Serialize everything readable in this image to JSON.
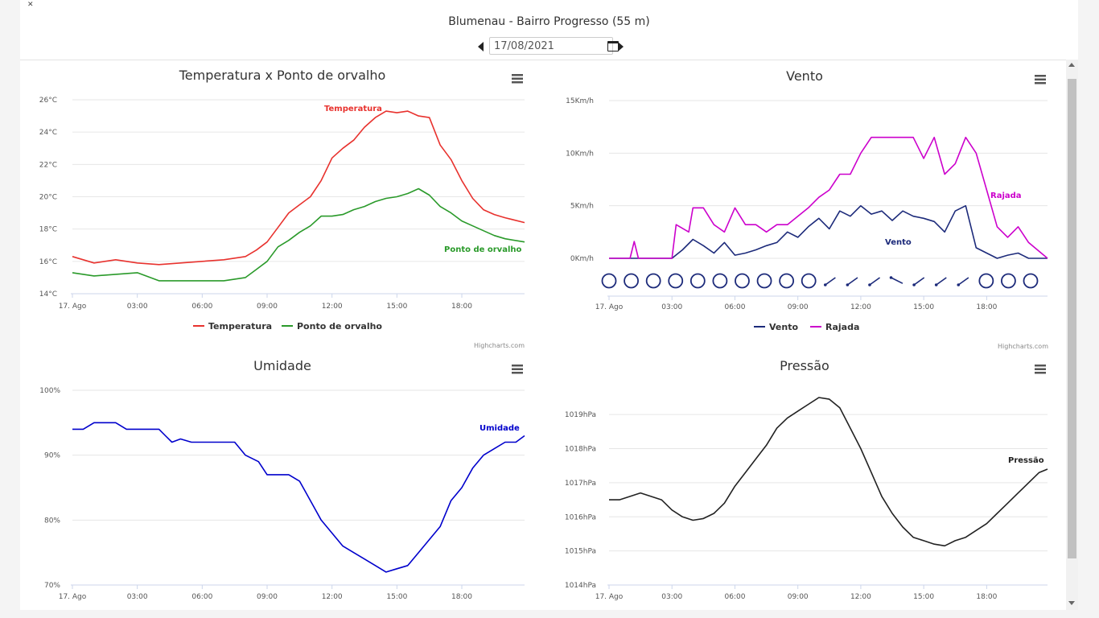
{
  "page": {
    "title": "Blumenau - Bairro Progresso (55 m)",
    "date_value": "17/08/2021",
    "credit": "Highcharts.com"
  },
  "icons": {
    "prev": "caret-left-icon",
    "next": "caret-right-icon",
    "calendar": "calendar-icon",
    "menu": "hamburger-menu-icon"
  },
  "colors": {
    "temperatura": "#e8322e",
    "orvalho": "#2a9a2a",
    "vento": "#1c2a7a",
    "rajada": "#cc00cc",
    "umidade": "#0000cc",
    "pressao": "#222222"
  },
  "chart_data": [
    {
      "type": "line",
      "title": "Temperatura x Ponto de orvalho",
      "x_ticks": [
        "17. Ago",
        "03:00",
        "06:00",
        "09:00",
        "12:00",
        "15:00",
        "18:00"
      ],
      "y_ticks": [
        "14°C",
        "16°C",
        "18°C",
        "20°C",
        "22°C",
        "24°C",
        "26°C"
      ],
      "ylim": [
        14,
        26
      ],
      "xlim": [
        0,
        20.9
      ],
      "series": [
        {
          "name": "Temperatura",
          "x": [
            0,
            1,
            2,
            3,
            4,
            5,
            6,
            7,
            7.5,
            8,
            8.5,
            9,
            9.5,
            10,
            10.5,
            11,
            11.5,
            12,
            12.5,
            13,
            13.5,
            14,
            14.5,
            15,
            15.5,
            16,
            16.5,
            17,
            17.5,
            18,
            18.5,
            19,
            19.5,
            20,
            20.9
          ],
          "y": [
            16.3,
            15.9,
            16.1,
            15.9,
            15.8,
            15.9,
            16.0,
            16.1,
            16.2,
            16.3,
            16.7,
            17.2,
            18.1,
            19.0,
            19.5,
            20.0,
            21.0,
            22.4,
            23.0,
            23.5,
            24.3,
            24.9,
            25.3,
            25.2,
            25.3,
            25.0,
            24.9,
            23.2,
            22.3,
            21.0,
            19.9,
            19.2,
            18.9,
            18.7,
            18.4
          ]
        },
        {
          "name": "Ponto de orvalho",
          "x": [
            0,
            1,
            2,
            3,
            4,
            5,
            6,
            7,
            7.5,
            8,
            8.5,
            9,
            9.5,
            10,
            10.5,
            11,
            11.5,
            12,
            12.5,
            13,
            13.5,
            14,
            14.5,
            15,
            15.5,
            16,
            16.5,
            17,
            17.5,
            18,
            18.5,
            19,
            19.5,
            20,
            20.9
          ],
          "y": [
            15.3,
            15.1,
            15.2,
            15.3,
            14.8,
            14.8,
            14.8,
            14.8,
            14.9,
            15.0,
            15.5,
            16.0,
            16.9,
            17.3,
            17.8,
            18.2,
            18.8,
            18.8,
            18.9,
            19.2,
            19.4,
            19.7,
            19.9,
            20.0,
            20.2,
            20.5,
            20.1,
            19.4,
            19.0,
            18.5,
            18.2,
            17.9,
            17.6,
            17.4,
            17.2
          ]
        }
      ],
      "labels": [
        "Temperatura",
        "Ponto de orvalho"
      ]
    },
    {
      "type": "line",
      "title": "Vento",
      "x_ticks": [
        "17. Ago",
        "03:00",
        "06:00",
        "09:00",
        "12:00",
        "15:00",
        "18:00"
      ],
      "y_ticks": [
        "0Km/h",
        "5Km/h",
        "10Km/h",
        "15Km/h"
      ],
      "ylim": [
        0,
        15
      ],
      "xlim": [
        0,
        20.9
      ],
      "series": [
        {
          "name": "Vento",
          "x": [
            0,
            1,
            2,
            3,
            3.5,
            4,
            4.5,
            5,
            5.5,
            6,
            6.5,
            7,
            7.5,
            8,
            8.5,
            9,
            9.5,
            10,
            10.5,
            11,
            11.5,
            12,
            12.5,
            13,
            13.5,
            14,
            14.5,
            15,
            15.5,
            16,
            16.5,
            17,
            17.5,
            18,
            18.5,
            19,
            19.5,
            20,
            20.9
          ],
          "y": [
            0,
            0,
            0,
            0,
            0.8,
            1.8,
            1.2,
            0.5,
            1.5,
            0.3,
            0.5,
            0.8,
            1.2,
            1.5,
            2.5,
            2.0,
            3.0,
            3.8,
            2.8,
            4.5,
            4.0,
            5.0,
            4.2,
            4.5,
            3.6,
            4.5,
            4.0,
            3.8,
            3.5,
            2.5,
            4.5,
            5.0,
            1.0,
            0.5,
            0,
            0.3,
            0.5,
            0,
            0
          ]
        },
        {
          "name": "Rajada",
          "x": [
            0,
            1,
            1.2,
            1.4,
            2,
            3,
            3.2,
            3.8,
            4,
            4.5,
            5,
            5.5,
            6,
            6.5,
            7,
            7.5,
            8,
            8.5,
            9,
            9.5,
            10,
            10.5,
            11,
            11.5,
            12,
            12.5,
            13,
            13.5,
            14,
            14.5,
            15,
            15.5,
            16,
            16.5,
            17,
            17.5,
            18,
            18.5,
            19,
            19.5,
            20,
            20.9
          ],
          "y": [
            0,
            0,
            1.6,
            0,
            0,
            0,
            3.2,
            2.5,
            4.8,
            4.8,
            3.2,
            2.5,
            4.8,
            3.2,
            3.2,
            2.5,
            3.2,
            3.2,
            4.0,
            4.8,
            5.8,
            6.5,
            8.0,
            8.0,
            10.0,
            11.5,
            11.5,
            11.5,
            11.5,
            11.5,
            9.5,
            11.5,
            8.0,
            9.0,
            11.5,
            10.0,
            6.5,
            3.0,
            2.0,
            3.0,
            1.5,
            0
          ]
        }
      ],
      "direction_markers": [
        "calm",
        "calm",
        "calm",
        "calm",
        "calm",
        "calm",
        "calm",
        "calm",
        "calm",
        "calm",
        "SW",
        "SW",
        "SW",
        "NW",
        "SW",
        "SW",
        "SW",
        "calm",
        "calm",
        "calm"
      ],
      "labels": [
        "Vento",
        "Rajada"
      ]
    },
    {
      "type": "line",
      "title": "Umidade",
      "x_ticks": [
        "17. Ago",
        "03:00",
        "06:00",
        "09:00",
        "12:00",
        "15:00",
        "18:00"
      ],
      "y_ticks": [
        "70%",
        "80%",
        "90%",
        "100%"
      ],
      "ylim": [
        70,
        100
      ],
      "xlim": [
        0,
        20.9
      ],
      "series": [
        {
          "name": "Umidade",
          "x": [
            0,
            0.5,
            1,
            1.5,
            2,
            2.5,
            3,
            4,
            4.3,
            4.6,
            5,
            5.5,
            6,
            6.5,
            7,
            7.5,
            8,
            8.3,
            8.6,
            9,
            9.5,
            10,
            10.5,
            11,
            11.5,
            12,
            12.5,
            13,
            13.5,
            14,
            14.5,
            15,
            15.5,
            16,
            16.5,
            17,
            17.5,
            18,
            18.5,
            19,
            19.5,
            20,
            20.5,
            20.9
          ],
          "y": [
            94,
            94,
            95,
            95,
            95,
            94,
            94,
            94,
            93,
            92,
            92.5,
            92,
            92,
            92,
            92,
            92,
            90,
            89.5,
            89,
            87,
            87,
            87,
            86,
            83,
            80,
            78,
            76,
            75,
            74,
            73,
            72,
            72.5,
            73,
            75,
            77,
            79,
            83,
            85,
            88,
            90,
            91,
            92,
            92,
            93
          ]
        }
      ],
      "labels": [
        "Umidade"
      ]
    },
    {
      "type": "line",
      "title": "Pressão",
      "x_ticks": [
        "17. Ago",
        "03:00",
        "06:00",
        "09:00",
        "12:00",
        "15:00",
        "18:00"
      ],
      "y_ticks": [
        "1014hPa",
        "1015hPa",
        "1016hPa",
        "1017hPa",
        "1018hPa",
        "1019hPa"
      ],
      "ylim": [
        1014,
        1019.5
      ],
      "xlim": [
        0,
        20.9
      ],
      "series": [
        {
          "name": "Pressão",
          "x": [
            0,
            0.5,
            1,
            1.5,
            2,
            2.5,
            3,
            3.5,
            4,
            4.5,
            5,
            5.5,
            6,
            6.5,
            7,
            7.5,
            8,
            8.5,
            9,
            9.5,
            10,
            10.5,
            11,
            11.5,
            12,
            12.5,
            13,
            13.5,
            14,
            14.5,
            15,
            15.5,
            16,
            16.5,
            17,
            17.5,
            18,
            18.5,
            19,
            19.5,
            20,
            20.5,
            20.9
          ],
          "y": [
            1016.5,
            1016.5,
            1016.6,
            1016.7,
            1016.6,
            1016.5,
            1016.2,
            1016.0,
            1015.9,
            1015.95,
            1016.1,
            1016.4,
            1016.9,
            1017.3,
            1017.7,
            1018.1,
            1018.6,
            1018.9,
            1019.1,
            1019.3,
            1019.5,
            1019.45,
            1019.2,
            1018.6,
            1018.0,
            1017.3,
            1016.6,
            1016.1,
            1015.7,
            1015.4,
            1015.3,
            1015.2,
            1015.15,
            1015.3,
            1015.4,
            1015.6,
            1015.8,
            1016.1,
            1016.4,
            1016.7,
            1017.0,
            1017.3,
            1017.4
          ]
        }
      ],
      "labels": [
        "Pressão"
      ]
    }
  ]
}
